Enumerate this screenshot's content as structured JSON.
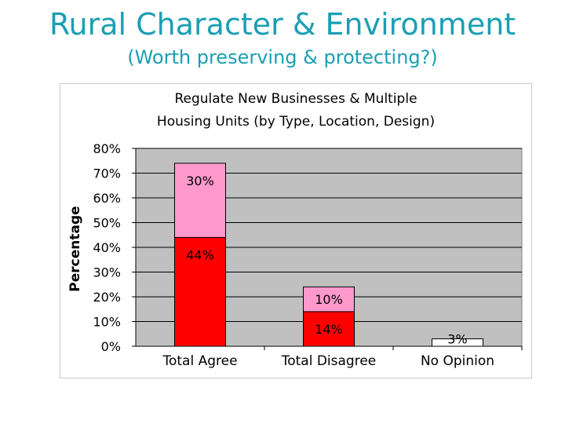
{
  "slide": {
    "title": "Rural Character & Environment",
    "subtitle": "(Worth preserving & protecting?)"
  },
  "chart_data": {
    "type": "bar",
    "stacked": true,
    "title_lines": [
      "Regulate New  Businesses & Multiple",
      "Housing Units (by Type, Location, Design)"
    ],
    "xlabel": "",
    "ylabel": "Percentage",
    "ylim": [
      0,
      80
    ],
    "y_ticks": [
      "0%",
      "10%",
      "20%",
      "30%",
      "40%",
      "50%",
      "60%",
      "70%",
      "80%"
    ],
    "categories": [
      "Total Agree",
      "Total Disagree",
      "No Opinion"
    ],
    "series": [
      {
        "values": [
          44,
          14,
          3
        ],
        "labels": [
          "44%",
          "14%",
          "3%"
        ],
        "colors": [
          "#ff0000",
          "#ff0000",
          "#ffffff"
        ]
      },
      {
        "values": [
          30,
          10,
          0
        ],
        "labels": [
          "30%",
          "10%",
          ""
        ],
        "colors": [
          "#ff99cc",
          "#ff99cc",
          "#ffffff"
        ]
      }
    ],
    "plot_background": "#c0c0c0",
    "grid": true,
    "legend": "none"
  }
}
